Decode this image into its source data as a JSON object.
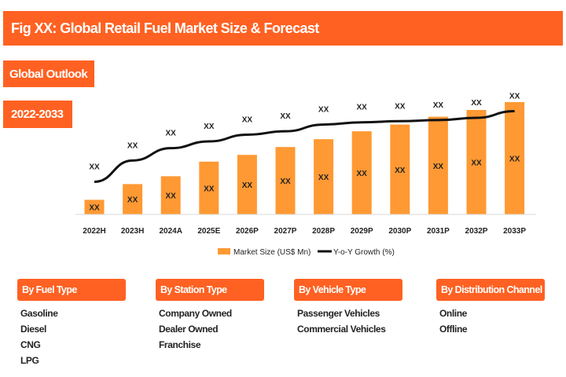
{
  "title": "Fig XX: Global Retail Fuel Market Size & Forecast",
  "outlook_label": "Global Outlook",
  "period_label": "2022-2033",
  "colors": {
    "header": "#FF6122",
    "bar": "#FF9933",
    "line": "#111111"
  },
  "chart_data": {
    "type": "bar",
    "categories": [
      "2022H",
      "2023H",
      "2024A",
      "2025E",
      "2026P",
      "2027P",
      "2028P",
      "2029P",
      "2030P",
      "2031P",
      "2032P",
      "2033P"
    ],
    "series": [
      {
        "name": "Market Size (US$ Mn)",
        "type": "bar",
        "values": [
          13,
          27,
          34,
          47,
          53,
          60,
          67,
          74,
          80,
          87,
          93,
          100
        ],
        "labels": [
          "XX",
          "XX",
          "XX",
          "XX",
          "XX",
          "XX",
          "XX",
          "XX",
          "XX",
          "XX",
          "XX",
          "XX"
        ]
      },
      {
        "name": "Y-o-Y Growth (%)",
        "type": "line",
        "values": [
          29,
          48,
          59,
          65,
          71,
          74,
          80,
          82,
          83,
          84,
          86,
          92
        ],
        "labels": [
          "XX",
          "XX",
          "XX",
          "XX",
          "XX",
          "XX",
          "XX",
          "XX",
          "XX",
          "XX",
          "XX",
          "XX"
        ]
      }
    ],
    "legend": "bottom",
    "grid": false
  },
  "segments": [
    {
      "title": "By Fuel Type",
      "items": [
        "Gasoline",
        "Diesel",
        "CNG",
        "LPG"
      ]
    },
    {
      "title": "By Station Type",
      "items": [
        "Company Owned",
        "Dealer Owned",
        "Franchise"
      ]
    },
    {
      "title": "By Vehicle Type",
      "items": [
        "Passenger Vehicles",
        "Commercial Vehicles"
      ]
    },
    {
      "title": "By Distribution Channel",
      "items": [
        "Online",
        "Offline"
      ]
    }
  ]
}
